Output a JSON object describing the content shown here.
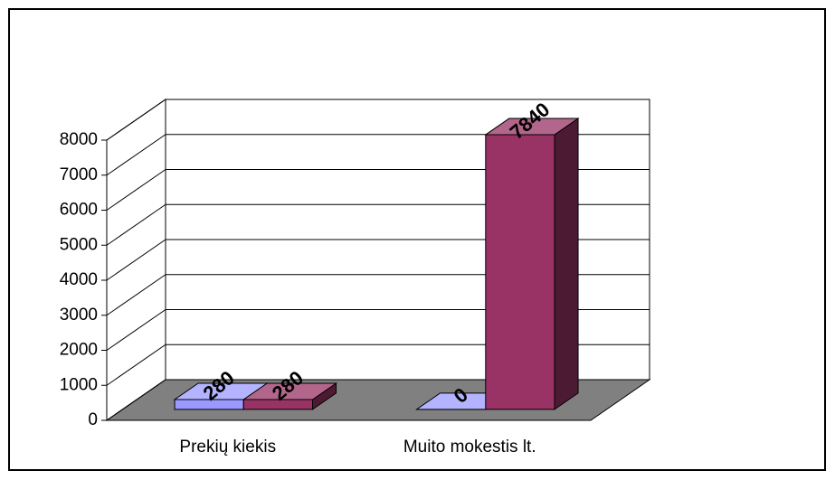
{
  "chart_data": {
    "type": "bar3d",
    "categories": [
      "Prekių kiekis",
      "Muito mokestis lt."
    ],
    "series": [
      {
        "color": "#9999ff",
        "values": [
          280,
          0
        ]
      },
      {
        "color": "#993366",
        "values": [
          280,
          7840
        ]
      }
    ],
    "ylim": [
      0,
      8000
    ],
    "yticks": [
      0,
      1000,
      2000,
      3000,
      4000,
      5000,
      6000,
      7000,
      8000
    ],
    "grid": true
  }
}
